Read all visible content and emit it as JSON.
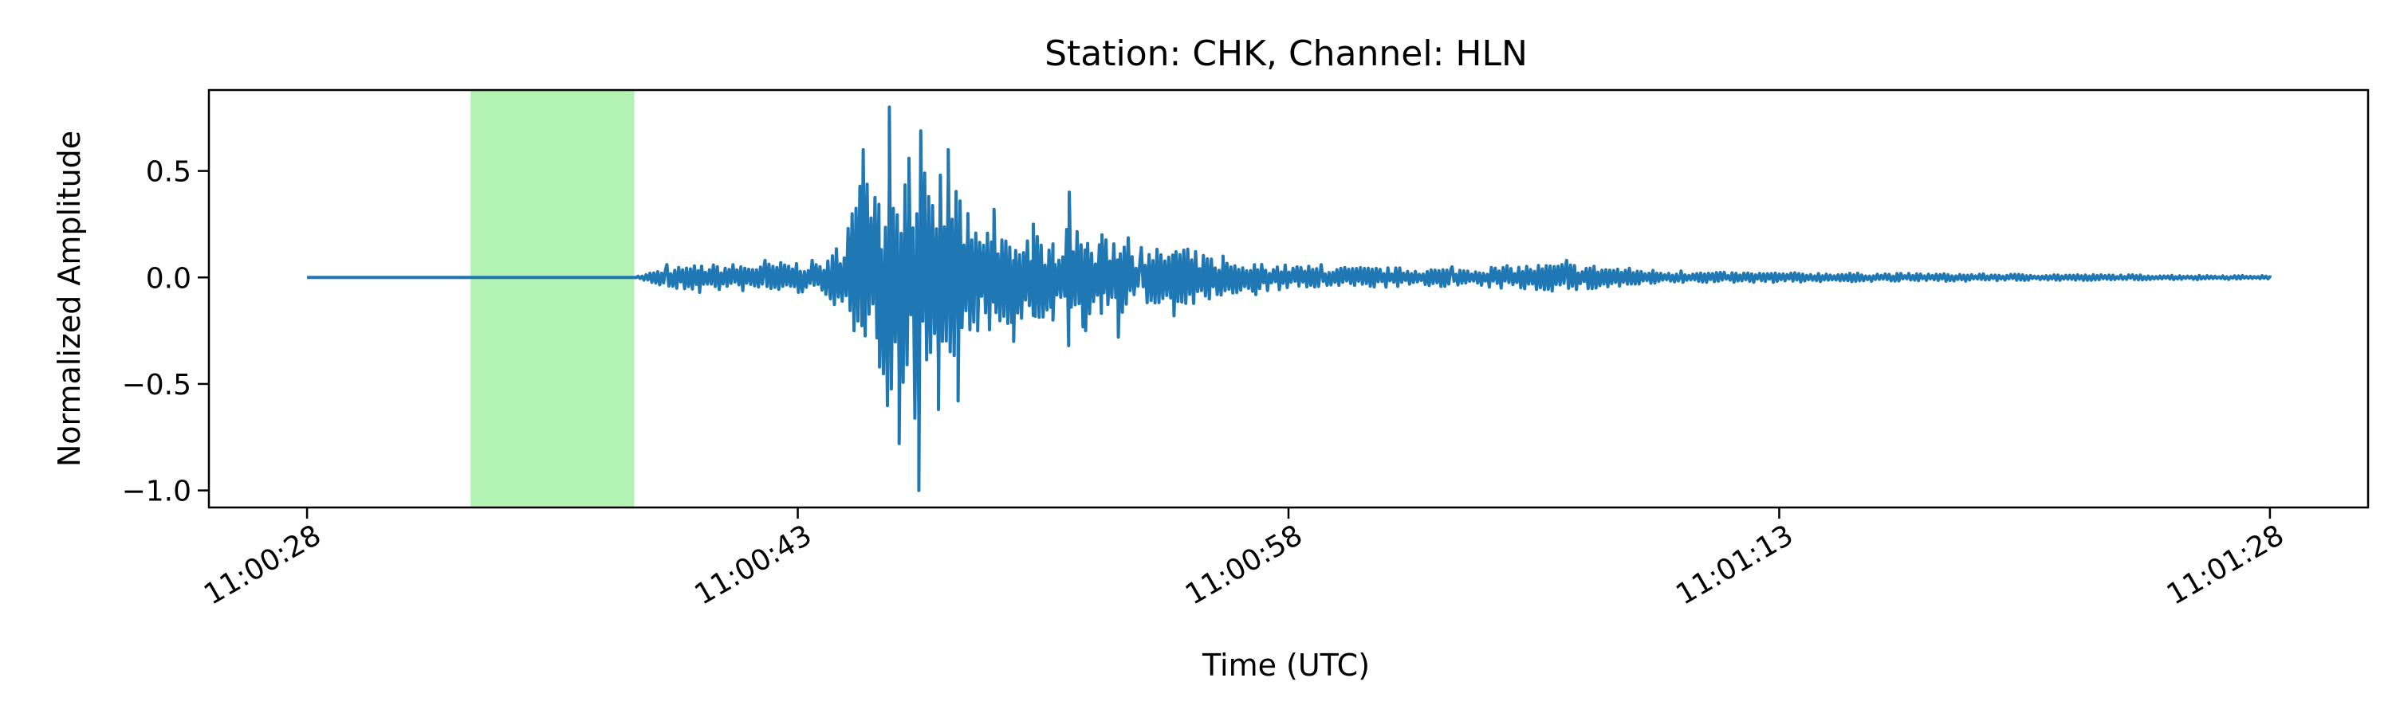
{
  "chart_data": {
    "type": "line",
    "title": "Station: CHK, Channel: HLN",
    "xlabel": "Time (UTC)",
    "ylabel": "Normalized Amplitude",
    "xlim": [
      "11:00:25",
      "11:01:31"
    ],
    "ylim": [
      -1.08,
      0.88
    ],
    "x_ticks": [
      "11:00:28",
      "11:00:43",
      "11:00:58",
      "11:01:13",
      "11:01:28"
    ],
    "y_ticks": [
      0.5,
      0.0,
      -0.5,
      -1.0
    ],
    "y_tick_labels": [
      "0.5",
      "0.0",
      "−0.5",
      "−1.0"
    ],
    "grid": false,
    "highlight_window": {
      "start": "11:00:33",
      "end": "11:00:38",
      "color": "#b2f2b2"
    },
    "series": [
      {
        "color": "#1f77b4",
        "x": [
          "11:00:28",
          "11:00:38",
          "11:00:39",
          "11:00:40",
          "11:00:42",
          "11:00:44",
          "11:00:45",
          "11:00:45.5",
          "11:00:45.8",
          "11:00:46.1",
          "11:00:46.4",
          "11:00:46.7",
          "11:00:47",
          "11:00:47.3",
          "11:00:47.6",
          "11:00:47.9",
          "11:00:48.2",
          "11:00:48.5",
          "11:00:49",
          "11:00:49.6",
          "11:00:50.2",
          "11:00:50.8",
          "11:00:51.3",
          "11:00:51.8",
          "11:00:52.3",
          "11:00:52.8",
          "11:00:53.5",
          "11:00:54.5",
          "11:00:56",
          "11:00:57",
          "11:00:59",
          "11:01:03",
          "11:01:06.5",
          "11:01:10",
          "11:01:28"
        ],
        "y": [
          0.0,
          0.0,
          0.06,
          -0.07,
          0.08,
          -0.1,
          0.6,
          -0.42,
          0.8,
          -0.78,
          0.56,
          -1.0,
          0.38,
          -0.62,
          0.6,
          -0.58,
          0.3,
          -0.25,
          0.32,
          -0.3,
          0.25,
          -0.2,
          0.4,
          -0.25,
          0.2,
          -0.28,
          0.14,
          -0.18,
          0.1,
          -0.08,
          0.06,
          0.05,
          0.08,
          0.03,
          0.01
        ]
      }
    ]
  }
}
